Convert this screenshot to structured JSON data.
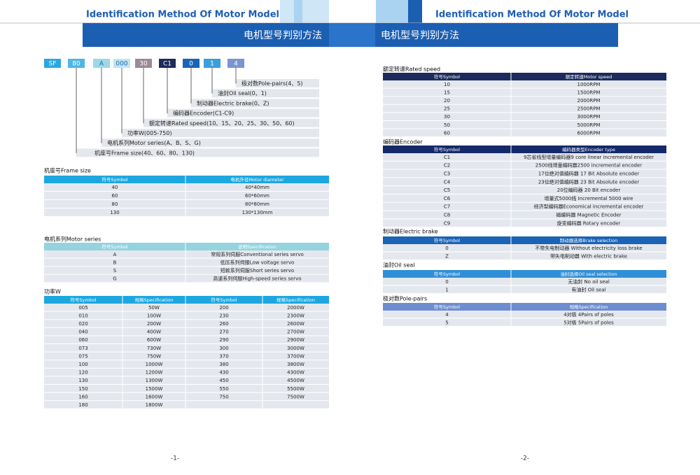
{
  "header": {
    "title_left": "Identification Method Of Motor Model",
    "title_right": "Identification Method Of Motor Model",
    "banner_left": "电机型号判别方法",
    "banner_right": "电机型号判别方法"
  },
  "model_code": {
    "boxes": [
      "SF",
      "80",
      "A",
      "000",
      "30",
      "C1",
      "0",
      "1",
      "4"
    ],
    "labels": [
      "极对数Pole-pairs(4、5)",
      "油封Oil seal(0、1)",
      "制动器Electric brake(0、Z)",
      "编码器Encoder(C1-C9)",
      "额定转速Rated speed(10、15、20、25、30、50、60)",
      "功率W(005-750)",
      "电机系列Motor series(A、B、S、G)",
      "机座号Frame size(40、60、80、130)"
    ]
  },
  "left_tables": [
    {
      "title": "机座号Frame size",
      "columns": [
        "符号Symbol",
        "电机外径Motor diameter"
      ],
      "rows": [
        [
          "40",
          "40*40mm"
        ],
        [
          "60",
          "60*60mm"
        ],
        [
          "80",
          "80*80mm"
        ],
        [
          "130",
          "130*130mm"
        ]
      ]
    },
    {
      "title": "电机系列Motor series",
      "columns": [
        "符号Symbol",
        "说明Specification"
      ],
      "rows": [
        [
          "A",
          "常规系列伺服Conventional series servo"
        ],
        [
          "B",
          "低压系列伺服Low voltage servo"
        ],
        [
          "S",
          "短款系列伺服Short series servo"
        ],
        [
          "G",
          "高速系列伺服High-speed series servo"
        ]
      ]
    },
    {
      "title": "功率W",
      "columns": [
        "符号Symbol",
        "规格Specification",
        "符号Symbol",
        "规格Specification"
      ],
      "rows": [
        [
          "005",
          "50W",
          "200",
          "2000W"
        ],
        [
          "010",
          "100W",
          "230",
          "2300W"
        ],
        [
          "020",
          "200W",
          "260",
          "2600W"
        ],
        [
          "040",
          "400W",
          "270",
          "2700W"
        ],
        [
          "060",
          "600W",
          "290",
          "2900W"
        ],
        [
          "073",
          "730W",
          "300",
          "3000W"
        ],
        [
          "075",
          "750W",
          "370",
          "3700W"
        ],
        [
          "100",
          "1000W",
          "380",
          "3800W"
        ],
        [
          "120",
          "1200W",
          "430",
          "4300W"
        ],
        [
          "130",
          "1300W",
          "450",
          "4500W"
        ],
        [
          "150",
          "1500W",
          "550",
          "5500W"
        ],
        [
          "160",
          "1600W",
          "750",
          "7500W"
        ],
        [
          "180",
          "1800W",
          null,
          null
        ]
      ]
    }
  ],
  "right_tables": [
    {
      "title": "额定转速Rated speed",
      "columns": [
        "符号Symbol",
        "额定转速Motor speed"
      ],
      "rows": [
        [
          "10",
          "1000RPM"
        ],
        [
          "15",
          "1500RPM"
        ],
        [
          "20",
          "2000RPM"
        ],
        [
          "25",
          "2500RPM"
        ],
        [
          "30",
          "3000RPM"
        ],
        [
          "50",
          "5000RPM"
        ],
        [
          "60",
          "6000RPM"
        ]
      ]
    },
    {
      "title": "编码器Encoder",
      "columns": [
        "符号Symbol",
        "编码器类型Encoder type"
      ],
      "rows": [
        [
          "C1",
          "9芯省线型增量编码器9 core linear incremental encoder"
        ],
        [
          "C2",
          "2500线增量编码器2500 incremental encoder"
        ],
        [
          "C3",
          "17位绝对值编码器 17 Bit Absolute encoder"
        ],
        [
          "C4",
          "23位绝对值编码器 23 Bit Absolute encoder"
        ],
        [
          "C5",
          "20位编码器 20 Bit encoder"
        ],
        [
          "C6",
          "增量式5000线 Incremental 5000 wire"
        ],
        [
          "C7",
          "经济型编码器Economical incremental encoder"
        ],
        [
          "C8",
          "磁编码器 Magnetic Encoder"
        ],
        [
          "C9",
          "旋变编码器 Rotary encoder"
        ]
      ]
    },
    {
      "title": "制动器Electric brake",
      "columns": [
        "符号Symbol",
        "制动器选择Brake selection"
      ],
      "rows": [
        [
          "0",
          "不带失电制动器 Without electricity loss brake"
        ],
        [
          "Z",
          "带失电制动器 With electric brake"
        ]
      ]
    },
    {
      "title": "油封Oil seal",
      "columns": [
        "符号Symbol",
        "油封选择Oil seal selection"
      ],
      "rows": [
        [
          "0",
          "无油封 No oil seal"
        ],
        [
          "1",
          "有油封 Oil seal"
        ]
      ]
    },
    {
      "title": "极对数Pole-pairs",
      "columns": [
        "符号Symbol",
        "规格Specification"
      ],
      "rows": [
        [
          "4",
          "4对极 4Pairs of poles"
        ],
        [
          "5",
          "5对极 5Pairs of poles"
        ]
      ]
    }
  ],
  "page_numbers": [
    "-1-",
    "-2-"
  ]
}
